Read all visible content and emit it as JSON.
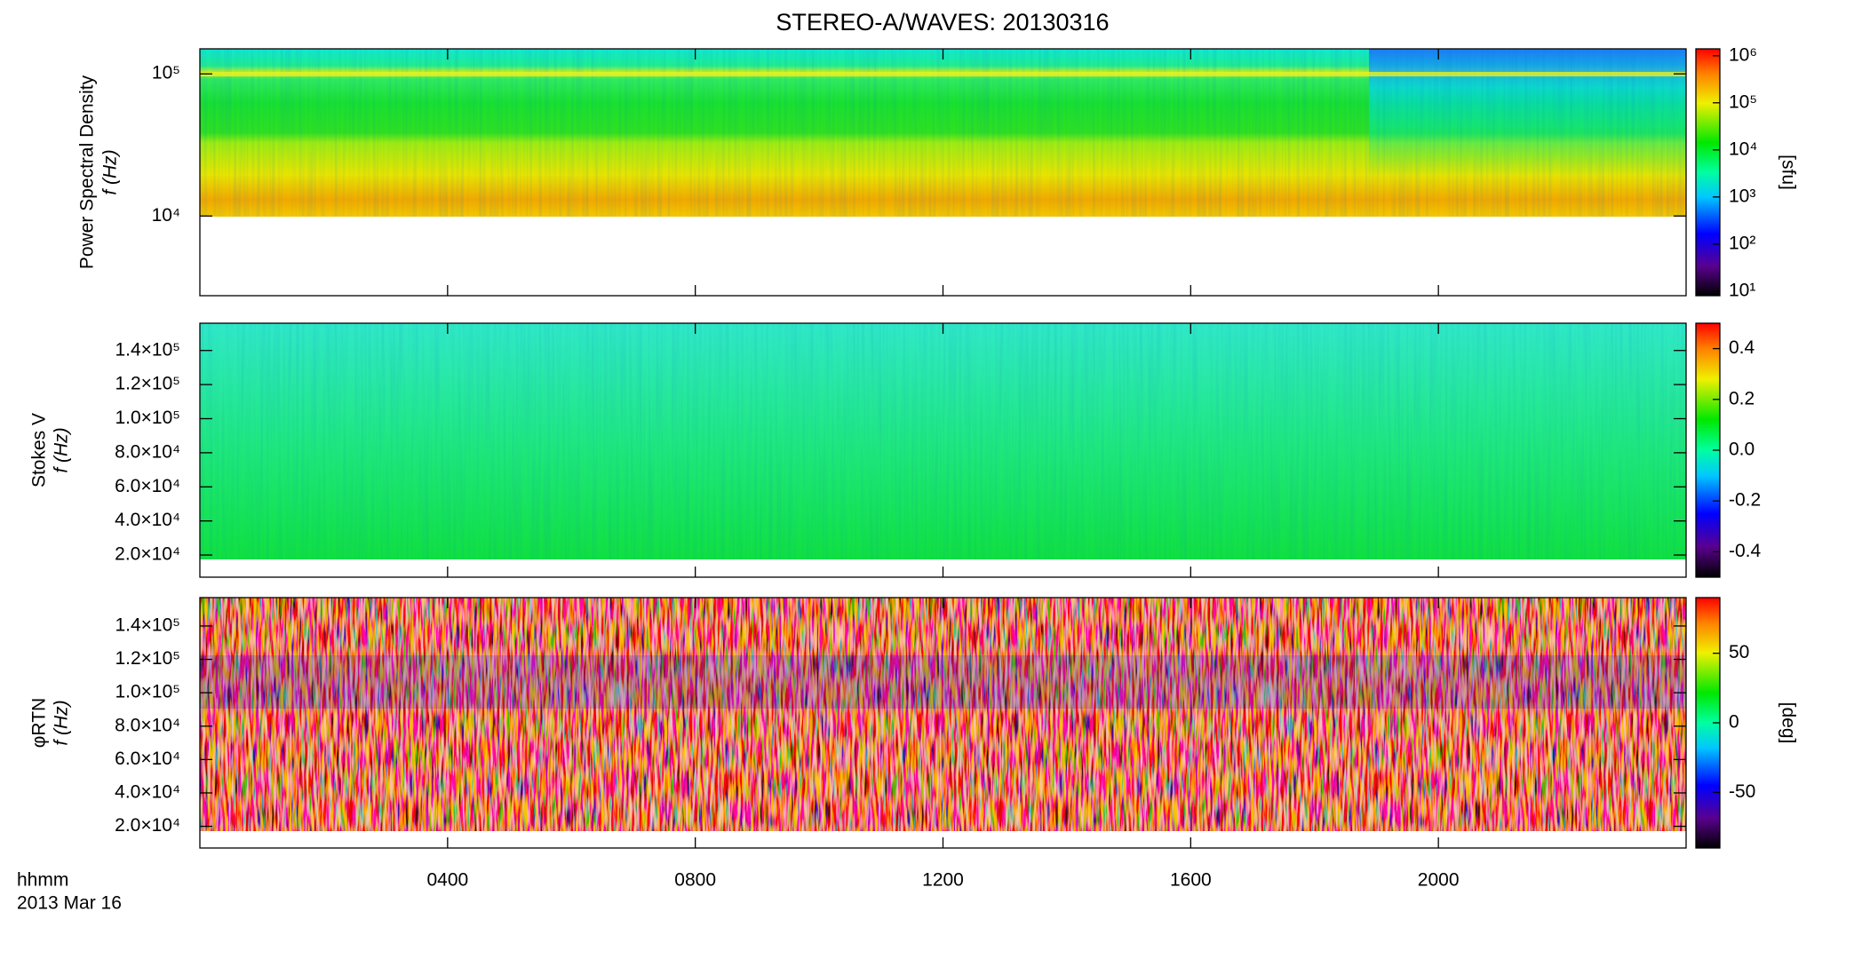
{
  "chart_data": {
    "type": "spectrogram",
    "title": "STEREO-A/WAVES: 20130316",
    "xlabel": "hhmm",
    "xsublabel": "2013 Mar 16",
    "xlim": [
      0,
      24
    ],
    "xticks": [
      {
        "value": 4,
        "label": "0400"
      },
      {
        "value": 8,
        "label": "0800"
      },
      {
        "value": 12,
        "label": "1200"
      },
      {
        "value": 16,
        "label": "1600"
      },
      {
        "value": 20,
        "label": "2000"
      }
    ],
    "panels": [
      {
        "ylabel": "Power Spectral Density",
        "ylabel2": "f (Hz)",
        "log_y": true,
        "ylim": [
          2750,
          150000
        ],
        "yticks": [
          {
            "value": 10000,
            "label": "10⁴"
          },
          {
            "value": 100000,
            "label": "10⁵"
          }
        ],
        "colorbar": {
          "label": "[sfu]",
          "log": true,
          "clim": [
            8,
            1400000
          ],
          "ticks": [
            {
              "value": 10,
              "label": "10¹"
            },
            {
              "value": 100,
              "label": "10²"
            },
            {
              "value": 1000,
              "label": "10³"
            },
            {
              "value": 10000,
              "label": "10⁴"
            },
            {
              "value": 100000,
              "label": "10⁵"
            },
            {
              "value": 1000000,
              "label": "10⁶"
            }
          ]
        }
      },
      {
        "ylabel": "Stokes V",
        "ylabel2": "f (Hz)",
        "log_y": false,
        "ylim": [
          7000,
          156000
        ],
        "yticks": [
          {
            "value": 20000,
            "label": "2.0×10⁴"
          },
          {
            "value": 40000,
            "label": "4.0×10⁴"
          },
          {
            "value": 60000,
            "label": "6.0×10⁴"
          },
          {
            "value": 80000,
            "label": "8.0×10⁴"
          },
          {
            "value": 100000,
            "label": "1.0×10⁵"
          },
          {
            "value": 120000,
            "label": "1.2×10⁵"
          },
          {
            "value": 140000,
            "label": "1.4×10⁵"
          }
        ],
        "colorbar": {
          "log": false,
          "clim": [
            -0.5,
            0.5
          ],
          "ticks": [
            -0.4,
            -0.2,
            {
              "value": 0,
              "label": "0.0"
            },
            0.2,
            0.4
          ]
        }
      },
      {
        "ylabel": "φRTN",
        "ylabel2": "f (Hz)",
        "log_y": false,
        "ylim": [
          7000,
          157000
        ],
        "yticks": [
          {
            "value": 20000,
            "label": "2.0×10⁴"
          },
          {
            "value": 40000,
            "label": "4.0×10⁴"
          },
          {
            "value": 60000,
            "label": "6.0×10⁴"
          },
          {
            "value": 80000,
            "label": "8.0×10⁴"
          },
          {
            "value": 100000,
            "label": "1.0×10⁵"
          },
          {
            "value": 120000,
            "label": "1.2×10⁵"
          },
          {
            "value": 140000,
            "label": "1.4×10⁵"
          }
        ],
        "colorbar": {
          "label": "[deg]",
          "log": false,
          "clim": [
            -90,
            90
          ],
          "ticks": [
            -50,
            0,
            50
          ]
        }
      }
    ]
  }
}
